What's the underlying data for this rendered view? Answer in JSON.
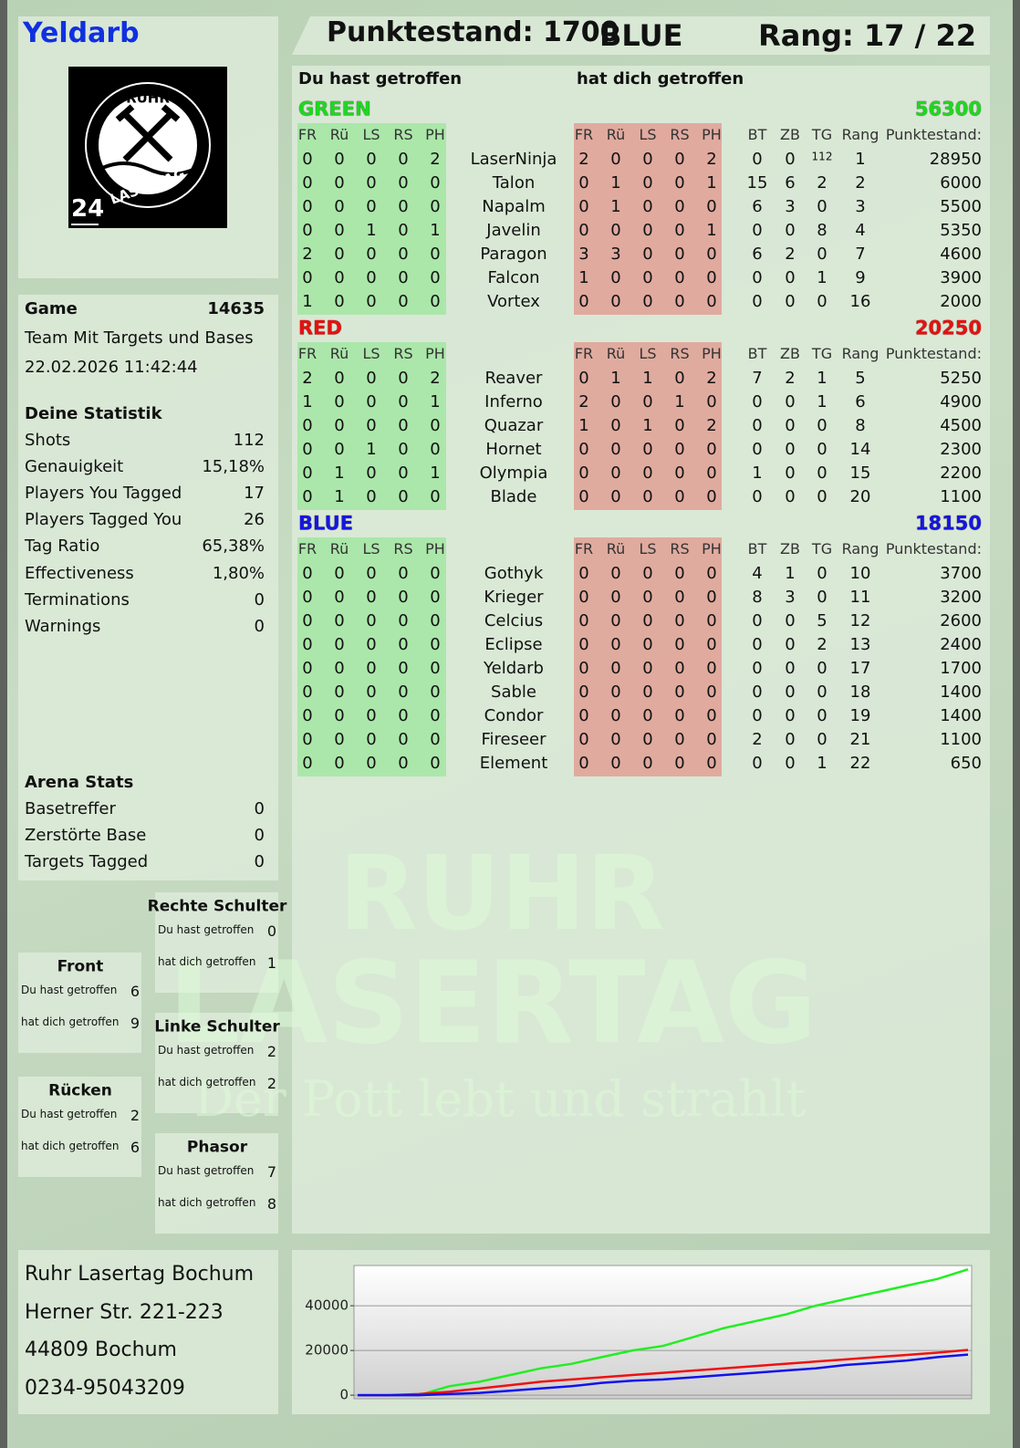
{
  "header": {
    "player": "Yeldarb",
    "score": "Punktestand: 1700",
    "team": "BLUE",
    "rank": "Rang: 17 / 22"
  },
  "logo": {
    "top": "RUHR",
    "bottom": "LASERTAG",
    "badge": "24"
  },
  "game": {
    "label": "Game",
    "id": 14635,
    "mode": "Team Mit Targets und Bases",
    "datetime": "22.02.2026 11:42:44"
  },
  "stats": {
    "title": "Deine Statistik",
    "rows": [
      [
        "Shots",
        112
      ],
      [
        "Genauigkeit",
        "15,18%"
      ],
      [
        "Players You Tagged",
        17
      ],
      [
        "Players Tagged You",
        26
      ],
      [
        "Tag Ratio",
        "65,38%"
      ],
      [
        "Effectiveness",
        "1,80%"
      ],
      [
        "Terminations",
        0
      ],
      [
        "Warnings",
        0
      ]
    ]
  },
  "arena": {
    "title": "Arena Stats",
    "rows": [
      [
        "Basetreffer",
        0
      ],
      [
        "Zerstörte Base",
        0
      ],
      [
        "Targets Tagged",
        0
      ]
    ]
  },
  "zones": {
    "you_hit": "Du hast getroffen",
    "hit_you": "hat dich getroffen",
    "items": [
      {
        "name": "Rechte Schulter",
        "you_hit": 0,
        "hit_you": 1
      },
      {
        "name": "Front",
        "you_hit": 6,
        "hit_you": 9
      },
      {
        "name": "Linke Schulter",
        "you_hit": 2,
        "hit_you": 2
      },
      {
        "name": "Rücken",
        "you_hit": 2,
        "hit_you": 6
      },
      {
        "name": "Phasor",
        "you_hit": 7,
        "hit_you": 8
      }
    ]
  },
  "address": [
    "Ruhr Lasertag Bochum",
    "Herner Str. 221-223",
    "44809 Bochum",
    "0234-95043209"
  ],
  "watermark": [
    "RUHR",
    "LASERTAG",
    "Der Pott lebt und strahlt"
  ],
  "table": {
    "you_hit": "Du hast getroffen",
    "hit_you": "hat dich getroffen",
    "hit_columns": [
      "FR",
      "Rü",
      "LS",
      "RS",
      "PH"
    ],
    "stat_columns": [
      "BT",
      "ZB",
      "TG",
      "Rang",
      "Punktestand:"
    ],
    "teams": [
      {
        "name": "GREEN",
        "color": "#1fd81f",
        "score": 56300,
        "rows": [
          {
            "you_hit": [
              0,
              0,
              0,
              0,
              2
            ],
            "player": "LaserNinja",
            "hit_you": [
              2,
              0,
              0,
              0,
              2
            ],
            "stats": [
              0,
              0,
              112,
              1,
              28950
            ]
          },
          {
            "you_hit": [
              0,
              0,
              0,
              0,
              0
            ],
            "player": "Talon",
            "hit_you": [
              0,
              1,
              0,
              0,
              1
            ],
            "stats": [
              15,
              6,
              2,
              2,
              6000
            ]
          },
          {
            "you_hit": [
              0,
              0,
              0,
              0,
              0
            ],
            "player": "Napalm",
            "hit_you": [
              0,
              1,
              0,
              0,
              0
            ],
            "stats": [
              6,
              3,
              0,
              3,
              5500
            ]
          },
          {
            "you_hit": [
              0,
              0,
              1,
              0,
              1
            ],
            "player": "Javelin",
            "hit_you": [
              0,
              0,
              0,
              0,
              1
            ],
            "stats": [
              0,
              0,
              8,
              4,
              5350
            ]
          },
          {
            "you_hit": [
              2,
              0,
              0,
              0,
              0
            ],
            "player": "Paragon",
            "hit_you": [
              3,
              3,
              0,
              0,
              0
            ],
            "stats": [
              6,
              2,
              0,
              7,
              4600
            ]
          },
          {
            "you_hit": [
              0,
              0,
              0,
              0,
              0
            ],
            "player": "Falcon",
            "hit_you": [
              1,
              0,
              0,
              0,
              0
            ],
            "stats": [
              0,
              0,
              1,
              9,
              3900
            ]
          },
          {
            "you_hit": [
              1,
              0,
              0,
              0,
              0
            ],
            "player": "Vortex",
            "hit_you": [
              0,
              0,
              0,
              0,
              0
            ],
            "stats": [
              0,
              0,
              0,
              16,
              2000
            ]
          }
        ]
      },
      {
        "name": "RED",
        "color": "#e81010",
        "score": 20250,
        "rows": [
          {
            "you_hit": [
              2,
              0,
              0,
              0,
              2
            ],
            "player": "Reaver",
            "hit_you": [
              0,
              1,
              1,
              0,
              2
            ],
            "stats": [
              7,
              2,
              1,
              5,
              5250
            ]
          },
          {
            "you_hit": [
              1,
              0,
              0,
              0,
              1
            ],
            "player": "Inferno",
            "hit_you": [
              2,
              0,
              0,
              1,
              0
            ],
            "stats": [
              0,
              0,
              1,
              6,
              4900
            ]
          },
          {
            "you_hit": [
              0,
              0,
              0,
              0,
              0
            ],
            "player": "Quazar",
            "hit_you": [
              1,
              0,
              1,
              0,
              2
            ],
            "stats": [
              0,
              0,
              0,
              8,
              4500
            ]
          },
          {
            "you_hit": [
              0,
              0,
              1,
              0,
              0
            ],
            "player": "Hornet",
            "hit_you": [
              0,
              0,
              0,
              0,
              0
            ],
            "stats": [
              0,
              0,
              0,
              14,
              2300
            ]
          },
          {
            "you_hit": [
              0,
              1,
              0,
              0,
              1
            ],
            "player": "Olympia",
            "hit_you": [
              0,
              0,
              0,
              0,
              0
            ],
            "stats": [
              1,
              0,
              0,
              15,
              2200
            ]
          },
          {
            "you_hit": [
              0,
              1,
              0,
              0,
              0
            ],
            "player": "Blade",
            "hit_you": [
              0,
              0,
              0,
              0,
              0
            ],
            "stats": [
              0,
              0,
              0,
              20,
              1100
            ]
          }
        ]
      },
      {
        "name": "BLUE",
        "color": "#1515e0",
        "score": 18150,
        "rows": [
          {
            "you_hit": [
              0,
              0,
              0,
              0,
              0
            ],
            "player": "Gothyk",
            "hit_you": [
              0,
              0,
              0,
              0,
              0
            ],
            "stats": [
              4,
              1,
              0,
              10,
              3700
            ]
          },
          {
            "you_hit": [
              0,
              0,
              0,
              0,
              0
            ],
            "player": "Krieger",
            "hit_you": [
              0,
              0,
              0,
              0,
              0
            ],
            "stats": [
              8,
              3,
              0,
              11,
              3200
            ]
          },
          {
            "you_hit": [
              0,
              0,
              0,
              0,
              0
            ],
            "player": "Celcius",
            "hit_you": [
              0,
              0,
              0,
              0,
              0
            ],
            "stats": [
              0,
              0,
              5,
              12,
              2600
            ]
          },
          {
            "you_hit": [
              0,
              0,
              0,
              0,
              0
            ],
            "player": "Eclipse",
            "hit_you": [
              0,
              0,
              0,
              0,
              0
            ],
            "stats": [
              0,
              0,
              2,
              13,
              2400
            ]
          },
          {
            "you_hit": [
              0,
              0,
              0,
              0,
              0
            ],
            "player": "Yeldarb",
            "hit_you": [
              0,
              0,
              0,
              0,
              0
            ],
            "stats": [
              0,
              0,
              0,
              17,
              1700
            ]
          },
          {
            "you_hit": [
              0,
              0,
              0,
              0,
              0
            ],
            "player": "Sable",
            "hit_you": [
              0,
              0,
              0,
              0,
              0
            ],
            "stats": [
              0,
              0,
              0,
              18,
              1400
            ]
          },
          {
            "you_hit": [
              0,
              0,
              0,
              0,
              0
            ],
            "player": "Condor",
            "hit_you": [
              0,
              0,
              0,
              0,
              0
            ],
            "stats": [
              0,
              0,
              0,
              19,
              1400
            ]
          },
          {
            "you_hit": [
              0,
              0,
              0,
              0,
              0
            ],
            "player": "Fireseer",
            "hit_you": [
              0,
              0,
              0,
              0,
              0
            ],
            "stats": [
              2,
              0,
              0,
              21,
              1100
            ]
          },
          {
            "you_hit": [
              0,
              0,
              0,
              0,
              0
            ],
            "player": "Element",
            "hit_you": [
              0,
              0,
              0,
              0,
              0
            ],
            "stats": [
              0,
              0,
              1,
              22,
              650
            ]
          }
        ]
      }
    ]
  },
  "chart_data": {
    "type": "line",
    "ylim": [
      -1600,
      58000
    ],
    "yticks": [
      0,
      20000,
      40000
    ],
    "grid": true,
    "series": [
      {
        "name": "GREEN",
        "color": "#22ee22",
        "values": [
          0,
          0,
          0,
          4000,
          6000,
          9000,
          12000,
          14000,
          17000,
          20000,
          22000,
          26000,
          30000,
          33000,
          36000,
          40000,
          43000,
          46000,
          49000,
          52000,
          56300
        ]
      },
      {
        "name": "RED",
        "color": "#ee1111",
        "values": [
          0,
          0,
          500,
          1500,
          3000,
          4500,
          6000,
          7000,
          8000,
          9000,
          10000,
          11000,
          12000,
          13000,
          14000,
          15000,
          16000,
          17000,
          18000,
          19000,
          20250
        ]
      },
      {
        "name": "BLUE",
        "color": "#1111ee",
        "values": [
          0,
          0,
          0,
          500,
          1000,
          2000,
          3000,
          4000,
          5500,
          6500,
          7000,
          8000,
          9000,
          10000,
          11000,
          12000,
          13500,
          14500,
          15500,
          17000,
          18150
        ]
      }
    ]
  }
}
